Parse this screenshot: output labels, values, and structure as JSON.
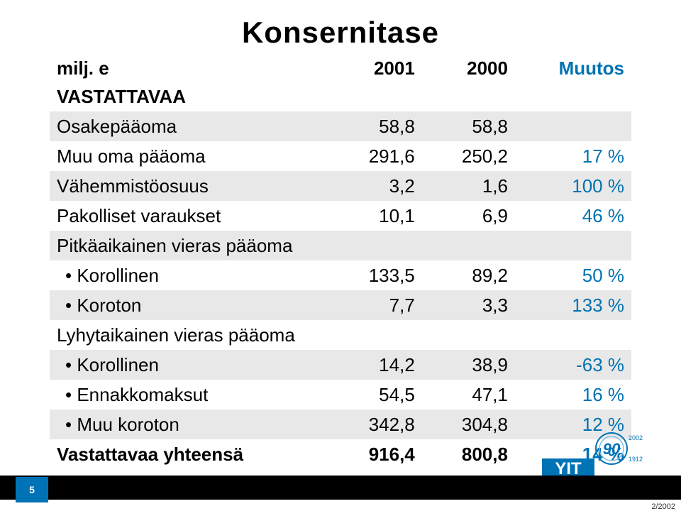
{
  "title": "Konsernitase",
  "columns": {
    "col0": "milj. e",
    "col1": "2001",
    "col2": "2000",
    "col3": "Muutos"
  },
  "rows": [
    {
      "label": "VASTATTAVAA",
      "c1": "",
      "c2": "",
      "c3": "",
      "section": true,
      "sub": false,
      "shade": false
    },
    {
      "label": "Osakepääoma",
      "c1": "58,8",
      "c2": "58,8",
      "c3": "",
      "section": false,
      "sub": false,
      "shade": true
    },
    {
      "label": "Muu oma pääoma",
      "c1": "291,6",
      "c2": "250,2",
      "c3": "17 %",
      "section": false,
      "sub": false,
      "shade": false
    },
    {
      "label": "Vähemmistöosuus",
      "c1": "3,2",
      "c2": "1,6",
      "c3": "100 %",
      "section": false,
      "sub": false,
      "shade": true
    },
    {
      "label": "Pakolliset varaukset",
      "c1": "10,1",
      "c2": "6,9",
      "c3": "46 %",
      "section": false,
      "sub": false,
      "shade": false
    },
    {
      "label": "Pitkäaikainen vieras pääoma",
      "c1": "",
      "c2": "",
      "c3": "",
      "section": false,
      "sub": false,
      "shade": true
    },
    {
      "label": "• Korollinen",
      "c1": "133,5",
      "c2": "89,2",
      "c3": "50 %",
      "section": false,
      "sub": true,
      "shade": false
    },
    {
      "label": "• Koroton",
      "c1": "7,7",
      "c2": "3,3",
      "c3": "133 %",
      "section": false,
      "sub": true,
      "shade": true
    },
    {
      "label": "Lyhytaikainen vieras pääoma",
      "c1": "",
      "c2": "",
      "c3": "",
      "section": false,
      "sub": false,
      "shade": false
    },
    {
      "label": "• Korollinen",
      "c1": "14,2",
      "c2": "38,9",
      "c3": "-63 %",
      "section": false,
      "sub": true,
      "shade": true
    },
    {
      "label": "• Ennakkomaksut",
      "c1": "54,5",
      "c2": "47,1",
      "c3": "16 %",
      "section": false,
      "sub": true,
      "shade": false
    },
    {
      "label": "• Muu koroton",
      "c1": "342,8",
      "c2": "304,8",
      "c3": "12 %",
      "section": false,
      "sub": true,
      "shade": true
    }
  ],
  "total": {
    "label": "Vastattavaa yhteensä",
    "c1": "916,4",
    "c2": "800,8",
    "c3": "14 %"
  },
  "pagenum": "5",
  "footer_date": "2/2002",
  "logo": {
    "yit_fill": "#0073b7",
    "ring_outer": "#0073b7",
    "ring_inner": "#7fbce0",
    "num": "90",
    "yr_top": "2002",
    "yr_bot": "1912"
  },
  "style": {
    "muutos_color": "#0072b2",
    "shade_bg": "#e8e8e8",
    "pagebox_bg": "#0073b7",
    "title_fontsize": 42,
    "table_fontsize": 26
  },
  "col_widths_pct": [
    48,
    16,
    16,
    20
  ]
}
